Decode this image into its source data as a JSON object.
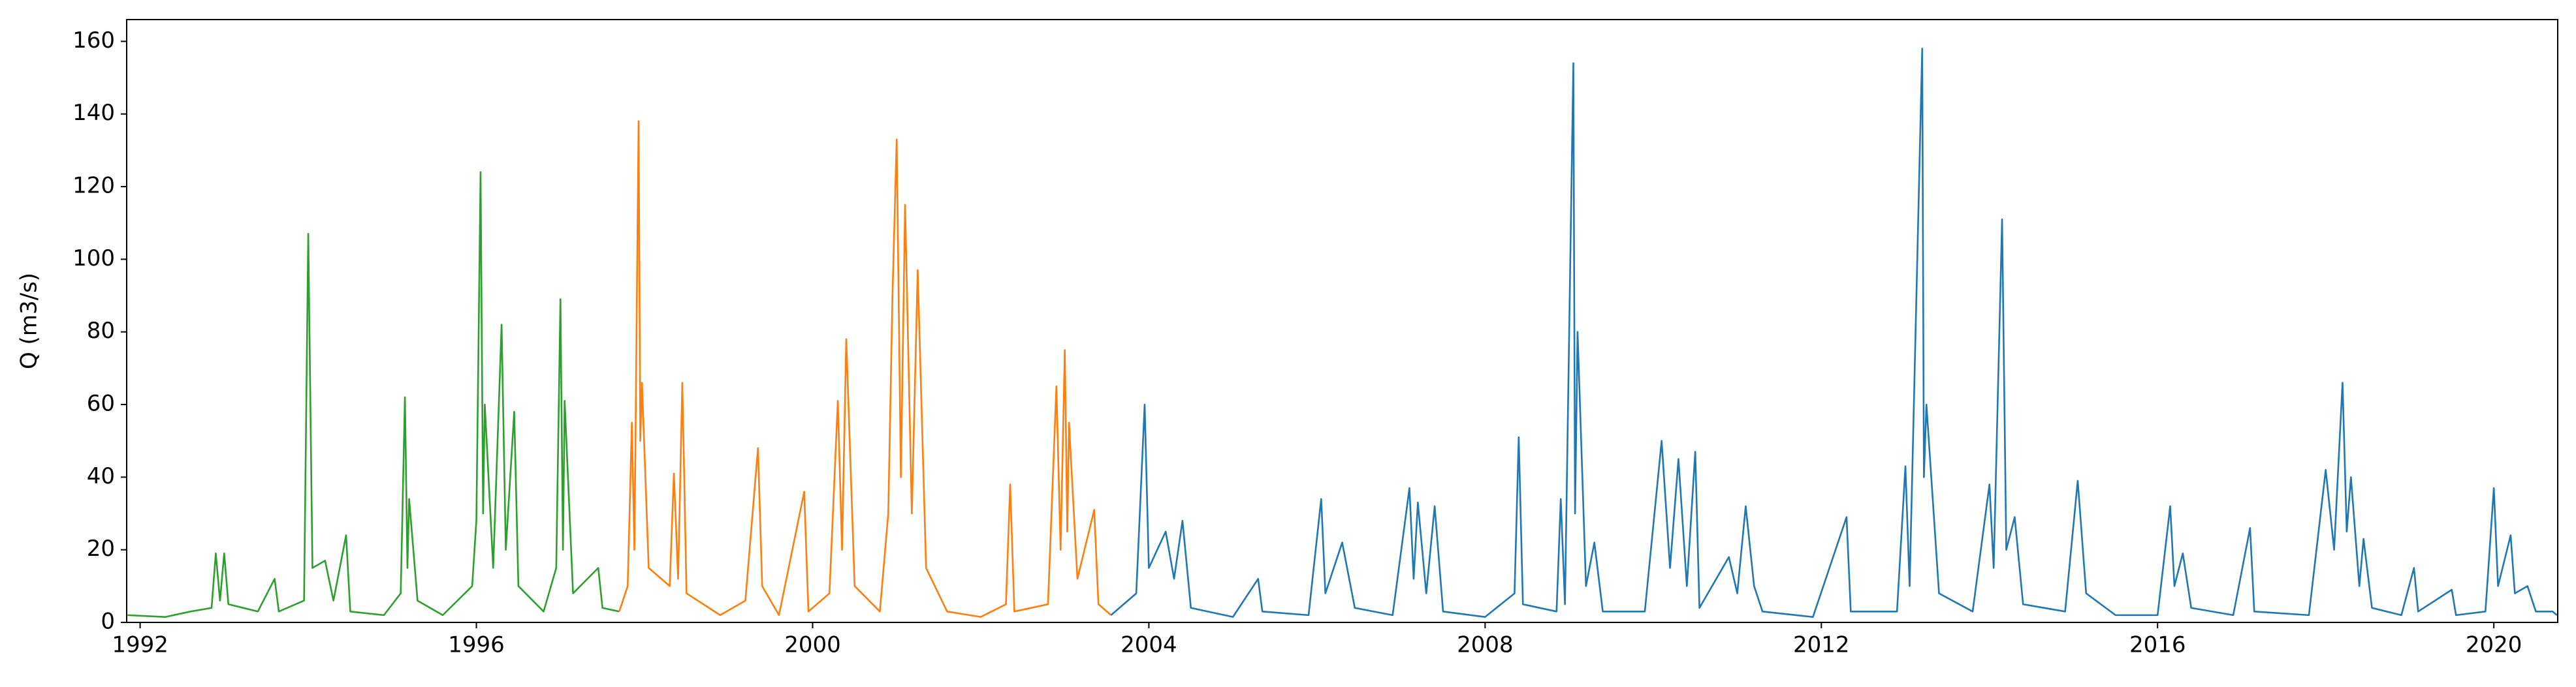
{
  "chart_data": {
    "type": "line",
    "ylabel": "Q (m3/s)",
    "xlim": [
      1991.84,
      2020.76
    ],
    "ylim": [
      0,
      166
    ],
    "xticks": [
      1992,
      1996,
      2000,
      2004,
      2008,
      2012,
      2016,
      2020
    ],
    "yticks": [
      0,
      20,
      40,
      60,
      80,
      100,
      120,
      140,
      160
    ],
    "series": [
      {
        "color": "#2ca02c",
        "x": [
          1991.85,
          1992.3,
          1992.6,
          1992.85,
          1992.9,
          1992.95,
          1993.0,
          1993.05,
          1993.4,
          1993.6,
          1993.65,
          1993.95,
          1994.0,
          1994.05,
          1994.2,
          1994.3,
          1994.45,
          1994.5,
          1994.9,
          1995.1,
          1995.15,
          1995.18,
          1995.2,
          1995.3,
          1995.6,
          1995.95,
          1996.0,
          1996.05,
          1996.08,
          1996.1,
          1996.2,
          1996.3,
          1996.35,
          1996.45,
          1996.5,
          1996.8,
          1996.95,
          1997.0,
          1997.03,
          1997.05,
          1997.15,
          1997.45,
          1997.5,
          1997.7
        ],
        "values": [
          2,
          1.5,
          3,
          4,
          19,
          6,
          19,
          5,
          3,
          12,
          3,
          6,
          107,
          15,
          17,
          6,
          24,
          3,
          2,
          8,
          62,
          15,
          34,
          6,
          2,
          10,
          28,
          124,
          30,
          60,
          15,
          82,
          20,
          58,
          10,
          3,
          15,
          89,
          20,
          61,
          8,
          15,
          4,
          3
        ]
      },
      {
        "color": "#ff7f0e",
        "x": [
          1997.7,
          1997.8,
          1997.85,
          1997.88,
          1997.93,
          1997.95,
          1997.97,
          1998.05,
          1998.3,
          1998.35,
          1998.4,
          1998.45,
          1998.5,
          1998.9,
          1999.2,
          1999.35,
          1999.4,
          1999.6,
          1999.9,
          1999.95,
          2000.2,
          2000.3,
          2000.35,
          2000.4,
          2000.5,
          2000.8,
          2000.9,
          2000.95,
          2001.0,
          2001.05,
          2001.1,
          2001.18,
          2001.25,
          2001.35,
          2001.6,
          2002.0,
          2002.3,
          2002.35,
          2002.4,
          2002.8,
          2002.9,
          2002.95,
          2003.0,
          2003.03,
          2003.05,
          2003.15,
          2003.35,
          2003.4,
          2003.55
        ],
        "values": [
          3,
          10,
          55,
          20,
          138,
          50,
          66,
          15,
          10,
          41,
          12,
          66,
          8,
          2,
          6,
          48,
          10,
          2,
          36,
          3,
          8,
          61,
          20,
          78,
          10,
          3,
          30,
          90,
          133,
          40,
          115,
          30,
          97,
          15,
          3,
          1.5,
          5,
          38,
          3,
          5,
          65,
          20,
          75,
          25,
          55,
          12,
          31,
          5,
          2
        ]
      },
      {
        "color": "#1f77b4",
        "x": [
          2003.55,
          2003.85,
          2003.95,
          2004.0,
          2004.2,
          2004.3,
          2004.4,
          2004.5,
          2005.0,
          2005.3,
          2005.35,
          2005.9,
          2006.05,
          2006.1,
          2006.3,
          2006.45,
          2006.9,
          2007.1,
          2007.15,
          2007.2,
          2007.3,
          2007.4,
          2007.5,
          2008.0,
          2008.35,
          2008.4,
          2008.45,
          2008.85,
          2008.9,
          2008.95,
          2009.05,
          2009.07,
          2009.1,
          2009.2,
          2009.3,
          2009.4,
          2009.9,
          2010.1,
          2010.2,
          2010.3,
          2010.4,
          2010.5,
          2010.55,
          2010.9,
          2011.0,
          2011.1,
          2011.2,
          2011.3,
          2011.9,
          2012.3,
          2012.35,
          2012.9,
          2013.0,
          2013.05,
          2013.2,
          2013.22,
          2013.25,
          2013.4,
          2013.8,
          2014.0,
          2014.05,
          2014.15,
          2014.2,
          2014.3,
          2014.4,
          2014.9,
          2015.05,
          2015.15,
          2015.5,
          2016.0,
          2016.15,
          2016.2,
          2016.3,
          2016.4,
          2016.9,
          2017.1,
          2017.15,
          2017.8,
          2018.0,
          2018.1,
          2018.2,
          2018.25,
          2018.3,
          2018.4,
          2018.45,
          2018.55,
          2018.9,
          2019.05,
          2019.1,
          2019.5,
          2019.55,
          2019.9,
          2020.0,
          2020.05,
          2020.2,
          2020.25,
          2020.4,
          2020.5,
          2020.7,
          2020.75
        ],
        "values": [
          2,
          8,
          60,
          15,
          25,
          12,
          28,
          4,
          1.5,
          12,
          3,
          2,
          34,
          8,
          22,
          4,
          2,
          37,
          12,
          33,
          8,
          32,
          3,
          1.5,
          8,
          51,
          5,
          3,
          34,
          5,
          154,
          30,
          80,
          10,
          22,
          3,
          3,
          50,
          15,
          45,
          10,
          47,
          4,
          18,
          8,
          32,
          10,
          3,
          1.5,
          29,
          3,
          3,
          43,
          10,
          158,
          40,
          60,
          8,
          3,
          38,
          15,
          111,
          20,
          29,
          5,
          3,
          39,
          8,
          2,
          2,
          32,
          10,
          19,
          4,
          2,
          26,
          3,
          2,
          42,
          20,
          66,
          25,
          40,
          10,
          23,
          4,
          2,
          15,
          3,
          9,
          2,
          3,
          37,
          10,
          24,
          8,
          10,
          3,
          3,
          2
        ]
      }
    ]
  }
}
